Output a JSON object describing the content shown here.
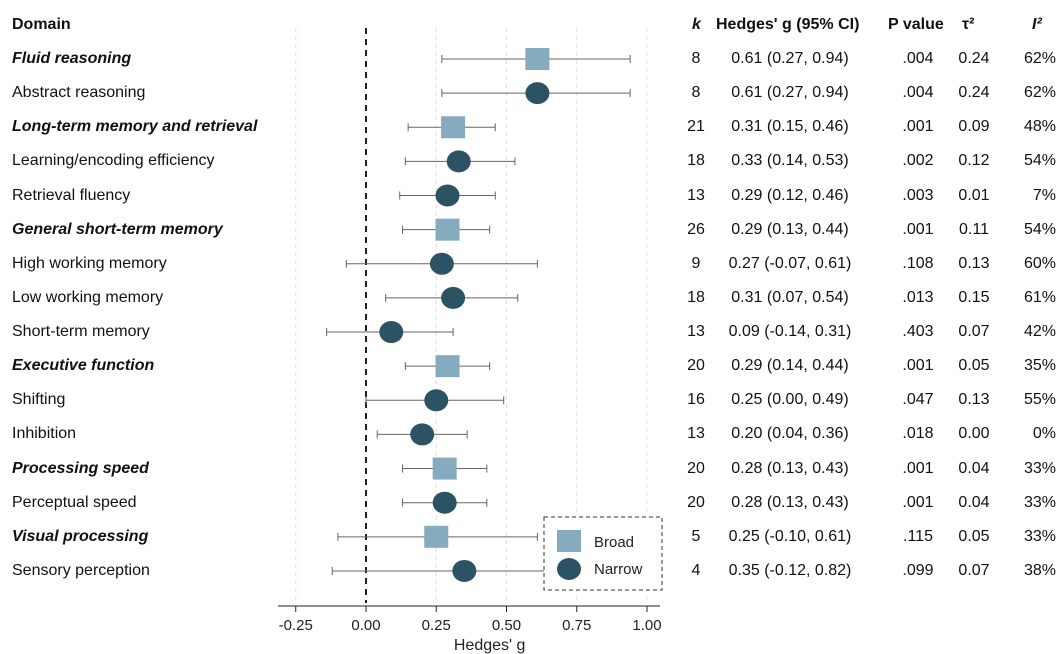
{
  "headers": {
    "domain": "Domain",
    "k": "k",
    "g": "Hedges' g (95% CI)",
    "p": "P value",
    "tau": "τ²",
    "i2": "I²"
  },
  "legend": {
    "broad": "Broad",
    "narrow": "Narrow"
  },
  "colors": {
    "broad": "#86abbe",
    "narrow": "#2b5363",
    "ci": "#666666",
    "grid": "#dddddd"
  },
  "chart_data": {
    "type": "forest",
    "xlabel": "Hedges' g",
    "xlim": [
      -0.3,
      1.05
    ],
    "xticks": [
      "-0.25",
      "0.00",
      "0.25",
      "0.50",
      "0.75",
      "1.00"
    ],
    "xtick_values": [
      -0.25,
      0,
      0.25,
      0.5,
      0.75,
      1.0
    ],
    "reference_line": 0,
    "rows": [
      {
        "label": "Fluid reasoning",
        "level": "broad",
        "g": 0.61,
        "lo": 0.27,
        "hi": 0.94,
        "k": "8",
        "ci": "0.61 (0.27, 0.94)",
        "p": ".004",
        "tau": "0.24",
        "i2": "62%"
      },
      {
        "label": "Abstract reasoning",
        "level": "narrow",
        "g": 0.61,
        "lo": 0.27,
        "hi": 0.94,
        "k": "8",
        "ci": "0.61 (0.27, 0.94)",
        "p": ".004",
        "tau": "0.24",
        "i2": "62%"
      },
      {
        "label": "Long-term memory and retrieval",
        "level": "broad",
        "g": 0.31,
        "lo": 0.15,
        "hi": 0.46,
        "k": "21",
        "ci": "0.31 (0.15, 0.46)",
        "p": ".001",
        "tau": "0.09",
        "i2": "48%"
      },
      {
        "label": "Learning/encoding efficiency",
        "level": "narrow",
        "g": 0.33,
        "lo": 0.14,
        "hi": 0.53,
        "k": "18",
        "ci": "0.33 (0.14, 0.53)",
        "p": ".002",
        "tau": "0.12",
        "i2": "54%"
      },
      {
        "label": "Retrieval fluency",
        "level": "narrow",
        "g": 0.29,
        "lo": 0.12,
        "hi": 0.46,
        "k": "13",
        "ci": "0.29 (0.12, 0.46)",
        "p": ".003",
        "tau": "0.01",
        "i2": "7%"
      },
      {
        "label": "General short-term memory",
        "level": "broad",
        "g": 0.29,
        "lo": 0.13,
        "hi": 0.44,
        "k": "26",
        "ci": "0.29 (0.13, 0.44)",
        "p": ".001",
        "tau": "0.11",
        "i2": "54%"
      },
      {
        "label": "High working memory",
        "level": "narrow",
        "g": 0.27,
        "lo": -0.07,
        "hi": 0.61,
        "k": "9",
        "ci": "0.27 (-0.07, 0.61)",
        "p": ".108",
        "tau": "0.13",
        "i2": "60%"
      },
      {
        "label": "Low working memory",
        "level": "narrow",
        "g": 0.31,
        "lo": 0.07,
        "hi": 0.54,
        "k": "18",
        "ci": "0.31 (0.07, 0.54)",
        "p": ".013",
        "tau": "0.15",
        "i2": "61%"
      },
      {
        "label": "Short-term memory",
        "level": "narrow",
        "g": 0.09,
        "lo": -0.14,
        "hi": 0.31,
        "k": "13",
        "ci": "0.09 (-0.14, 0.31)",
        "p": ".403",
        "tau": "0.07",
        "i2": "42%"
      },
      {
        "label": "Executive function",
        "level": "broad",
        "g": 0.29,
        "lo": 0.14,
        "hi": 0.44,
        "k": "20",
        "ci": "0.29 (0.14, 0.44)",
        "p": ".001",
        "tau": "0.05",
        "i2": "35%"
      },
      {
        "label": "Shifting",
        "level": "narrow",
        "g": 0.25,
        "lo": 0.0,
        "hi": 0.49,
        "k": "16",
        "ci": "0.25 (0.00, 0.49)",
        "p": ".047",
        "tau": "0.13",
        "i2": "55%"
      },
      {
        "label": "Inhibition",
        "level": "narrow",
        "g": 0.2,
        "lo": 0.04,
        "hi": 0.36,
        "k": "13",
        "ci": "0.20 (0.04, 0.36)",
        "p": ".018",
        "tau": "0.00",
        "i2": "0%"
      },
      {
        "label": "Processing speed",
        "level": "broad",
        "g": 0.28,
        "lo": 0.13,
        "hi": 0.43,
        "k": "20",
        "ci": "0.28 (0.13, 0.43)",
        "p": ".001",
        "tau": "0.04",
        "i2": "33%"
      },
      {
        "label": "Perceptual speed",
        "level": "narrow",
        "g": 0.28,
        "lo": 0.13,
        "hi": 0.43,
        "k": "20",
        "ci": "0.28 (0.13, 0.43)",
        "p": ".001",
        "tau": "0.04",
        "i2": "33%"
      },
      {
        "label": "Visual processing",
        "level": "broad",
        "g": 0.25,
        "lo": -0.1,
        "hi": 0.61,
        "k": "5",
        "ci": "0.25 (-0.10, 0.61)",
        "p": ".115",
        "tau": "0.05",
        "i2": "33%"
      },
      {
        "label": "Sensory perception",
        "level": "narrow",
        "g": 0.35,
        "lo": -0.12,
        "hi": 0.82,
        "k": "4",
        "ci": "0.35 (-0.12, 0.82)",
        "p": ".099",
        "tau": "0.07",
        "i2": "38%"
      }
    ]
  }
}
